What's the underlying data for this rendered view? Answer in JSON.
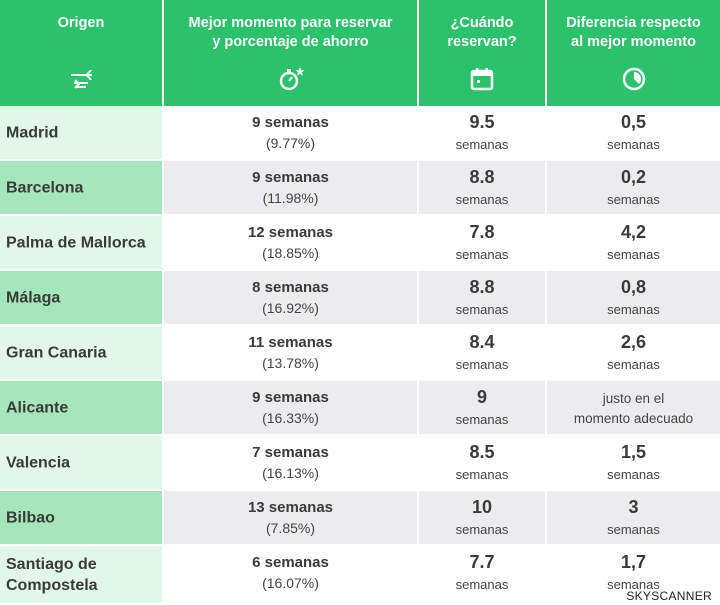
{
  "header": {
    "col_origin": "Origen",
    "col_best_line1": "Mejor momento  para reservar",
    "col_best_line2": "y  porcentaje de ahorro",
    "col_when_line1": "¿Cuándo",
    "col_when_line2": "reservan?",
    "col_diff_line1": "Diferencia  respecto",
    "col_diff_line2": "al mejor momento",
    "icons": [
      "airplane-departure-icon",
      "stopwatch-star-icon",
      "calendar-icon",
      "clock-icon"
    ]
  },
  "colors": {
    "header_bg": "#2cc26b",
    "origin_light": "#e2f7ea",
    "origin_dark": "#a5e6bd",
    "row_white": "#ffffff",
    "row_gray": "#ececee"
  },
  "rows": [
    {
      "origin": "Madrid",
      "best": "9 semanas",
      "saving": "(9.77%)",
      "when": "9.5",
      "when_unit": "semanas",
      "diff": "0,5",
      "diff_unit": "semanas"
    },
    {
      "origin": "Barcelona",
      "best": "9 semanas",
      "saving": "(11.98%)",
      "when": "8.8",
      "when_unit": "semanas",
      "diff": "0,2",
      "diff_unit": "semanas"
    },
    {
      "origin": "Palma de Mallorca",
      "best": "12 semanas",
      "saving": "(18.85%)",
      "when": "7.8",
      "when_unit": "semanas",
      "diff": "4,2",
      "diff_unit": "semanas"
    },
    {
      "origin": "Málaga",
      "best": "8 semanas",
      "saving": "(16.92%)",
      "when": "8.8",
      "when_unit": "semanas",
      "diff": "0,8",
      "diff_unit": "semanas"
    },
    {
      "origin": "Gran Canaria",
      "best": "11 semanas",
      "saving": "(13.78%)",
      "when": "8.4",
      "when_unit": "semanas",
      "diff": "2,6",
      "diff_unit": "semanas"
    },
    {
      "origin": "Alicante",
      "best": "9 semanas",
      "saving": "(16.33%)",
      "when": "9",
      "when_unit": "semanas",
      "diff_note_line1": "justo en el",
      "diff_note_line2": "momento adecuado"
    },
    {
      "origin": "Valencia",
      "best": "7 semanas",
      "saving": "(16.13%)",
      "when": "8.5",
      "when_unit": "semanas",
      "diff": "1,5",
      "diff_unit": "semanas"
    },
    {
      "origin": "Bilbao",
      "best": "13 semanas",
      "saving": "(7.85%)",
      "when": "10",
      "when_unit": "semanas",
      "diff": "3",
      "diff_unit": "semanas"
    },
    {
      "origin": "Santiago de Compostela",
      "best": "6 semanas",
      "saving": "(16.07%)",
      "when": "7.7",
      "when_unit": "semanas",
      "diff": "1,7",
      "diff_unit": "semanas"
    }
  ],
  "source": "SKYSCANNER"
}
